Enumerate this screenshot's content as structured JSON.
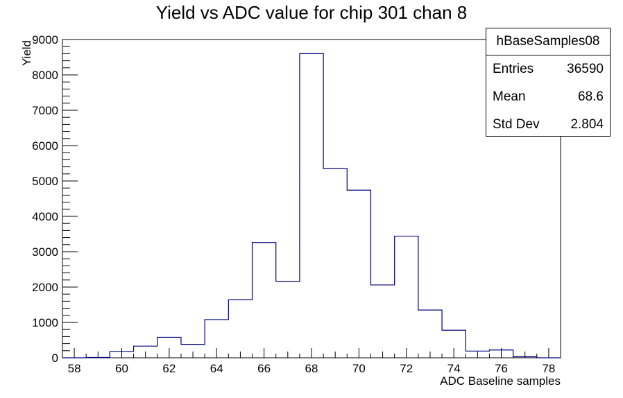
{
  "chart_data": {
    "type": "histogram",
    "title": "Yield vs ADC value for chip 301 chan 8",
    "xlabel": "ADC Baseline samples",
    "ylabel": "Yield",
    "xlim": [
      57.5,
      78.5
    ],
    "ylim": [
      0,
      9000
    ],
    "x_ticks": [
      58,
      60,
      62,
      64,
      66,
      68,
      70,
      72,
      74,
      76,
      78
    ],
    "y_ticks": [
      0,
      1000,
      2000,
      3000,
      4000,
      5000,
      6000,
      7000,
      8000,
      9000
    ],
    "bin_width": 1,
    "bin_low_edges": [
      57.5,
      58.5,
      59.5,
      60.5,
      61.5,
      62.5,
      63.5,
      64.5,
      65.5,
      66.5,
      67.5,
      68.5,
      69.5,
      70.5,
      71.5,
      72.5,
      73.5,
      74.5,
      75.5,
      76.5,
      77.5
    ],
    "values": [
      0,
      10,
      180,
      330,
      580,
      380,
      1080,
      1640,
      3260,
      2160,
      8600,
      5350,
      4740,
      2060,
      3440,
      1350,
      780,
      190,
      220,
      30,
      0
    ],
    "line_color": "#000080",
    "grid": false
  },
  "stats_box": {
    "name": "hBaseSamples08",
    "entries_label": "Entries",
    "entries_value": "36590",
    "mean_label": "Mean",
    "mean_value": "68.6",
    "stddev_label": "Std Dev",
    "stddev_value": "2.804"
  }
}
